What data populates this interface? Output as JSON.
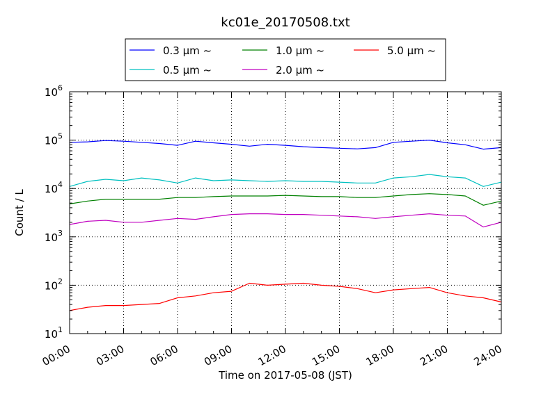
{
  "chart_data": {
    "type": "line",
    "title": "kc01e_20170508.txt",
    "xlabel": "Time on 2017-05-08 (JST)",
    "ylabel": "Count / L",
    "y_scale": "log",
    "ylim": [
      10,
      1000000
    ],
    "y_ticks": [
      {
        "base": "10",
        "exp": "1"
      },
      {
        "base": "10",
        "exp": "2"
      },
      {
        "base": "10",
        "exp": "3"
      },
      {
        "base": "10",
        "exp": "4"
      },
      {
        "base": "10",
        "exp": "5"
      },
      {
        "base": "10",
        "exp": "6"
      }
    ],
    "x_ticks": [
      "00:00",
      "03:00",
      "06:00",
      "09:00",
      "12:00",
      "15:00",
      "18:00",
      "21:00",
      "24:00"
    ],
    "grid": true,
    "legend_position": "top",
    "x": [
      "00:00",
      "01:00",
      "02:00",
      "03:00",
      "04:00",
      "05:00",
      "06:00",
      "07:00",
      "08:00",
      "09:00",
      "10:00",
      "11:00",
      "12:00",
      "13:00",
      "14:00",
      "15:00",
      "16:00",
      "17:00",
      "18:00",
      "19:00",
      "20:00",
      "21:00",
      "22:00",
      "23:00",
      "24:00"
    ],
    "series": [
      {
        "name": "0.3 μm ~",
        "color": "#0000ff",
        "values": [
          90000,
          92000,
          98000,
          95000,
          90000,
          85000,
          78000,
          95000,
          88000,
          82000,
          75000,
          82000,
          78000,
          73000,
          70000,
          68000,
          66000,
          70000,
          90000,
          95000,
          100000,
          88000,
          80000,
          65000,
          70000
        ]
      },
      {
        "name": "0.5 μm ~",
        "color": "#00c0c0",
        "values": [
          11000,
          14000,
          15500,
          14500,
          16500,
          15000,
          13000,
          16500,
          14500,
          15000,
          14500,
          14000,
          14500,
          14000,
          14000,
          13500,
          13000,
          13000,
          16500,
          17500,
          19500,
          17500,
          16500,
          11000,
          13500
        ]
      },
      {
        "name": "1.0 μm ~",
        "color": "#008000",
        "values": [
          4800,
          5500,
          6000,
          6000,
          6000,
          6000,
          6500,
          6500,
          6800,
          7000,
          7000,
          7000,
          7200,
          7000,
          6800,
          6800,
          6500,
          6500,
          7000,
          7500,
          7800,
          7500,
          7000,
          4500,
          5500
        ]
      },
      {
        "name": "2.0 μm ~",
        "color": "#c000c0",
        "values": [
          1800,
          2100,
          2200,
          2000,
          2000,
          2200,
          2400,
          2300,
          2600,
          2900,
          3000,
          3000,
          2900,
          2900,
          2800,
          2700,
          2600,
          2400,
          2600,
          2800,
          3000,
          2800,
          2700,
          1600,
          2000
        ]
      },
      {
        "name": "5.0 μm ~",
        "color": "#ff0000",
        "values": [
          30,
          35,
          38,
          38,
          40,
          42,
          55,
          60,
          70,
          75,
          110,
          100,
          105,
          110,
          100,
          95,
          85,
          70,
          80,
          85,
          90,
          70,
          60,
          55,
          45
        ]
      }
    ]
  }
}
